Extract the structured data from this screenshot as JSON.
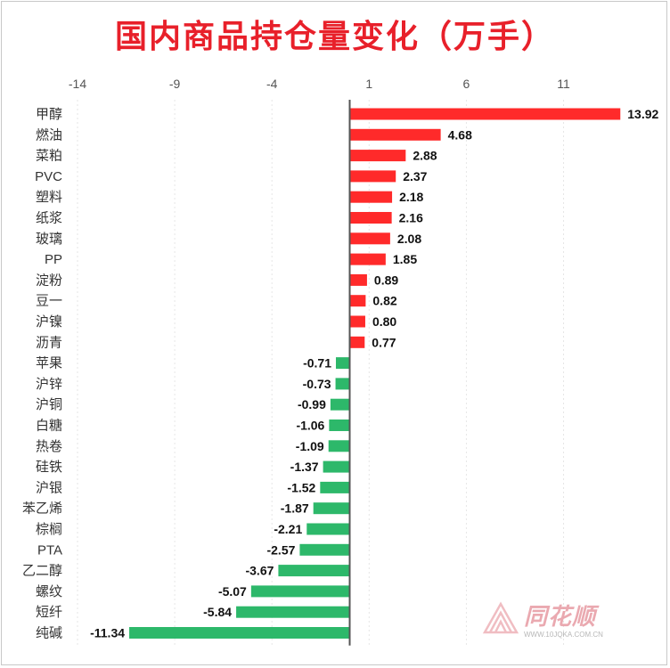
{
  "title": "国内商品持仓量变化（万手）",
  "watermark": {
    "brand": "同花顺",
    "url": "WWW.10JQKA.COM.CN"
  },
  "chart_data": {
    "type": "bar",
    "orientation": "horizontal",
    "xlim": [
      -14,
      14
    ],
    "ticks": [
      -14,
      -9,
      -4,
      1,
      6,
      11
    ],
    "grid": true,
    "positive_color": "#ff2a2a",
    "negative_color": "#2db86a",
    "categories": [
      "甲醇",
      "燃油",
      "菜粕",
      "PVC",
      "塑料",
      "纸浆",
      "玻璃",
      "PP",
      "淀粉",
      "豆一",
      "沪镍",
      "沥青",
      "苹果",
      "沪锌",
      "沪铜",
      "白糖",
      "热卷",
      "硅铁",
      "沪银",
      "苯乙烯",
      "棕榈",
      "PTA",
      "乙二醇",
      "螺纹",
      "短纤",
      "纯碱"
    ],
    "values": [
      13.92,
      4.68,
      2.88,
      2.37,
      2.18,
      2.16,
      2.08,
      1.85,
      0.89,
      0.82,
      0.8,
      0.77,
      -0.71,
      -0.73,
      -0.99,
      -1.06,
      -1.09,
      -1.37,
      -1.52,
      -1.87,
      -2.21,
      -2.57,
      -3.67,
      -5.07,
      -5.84,
      -11.34
    ],
    "labels": [
      "13.92",
      "4.68",
      "2.88",
      "2.37",
      "2.18",
      "2.16",
      "2.08",
      "1.85",
      "0.89",
      "0.82",
      "0.80",
      "0.77",
      "-0.71",
      "-0.73",
      "-0.99",
      "-1.06",
      "-1.09",
      "-1.37",
      "-1.52",
      "-1.87",
      "-2.21",
      "-2.57",
      "-3.67",
      "-5.07",
      "-5.84",
      "-11.34"
    ]
  }
}
